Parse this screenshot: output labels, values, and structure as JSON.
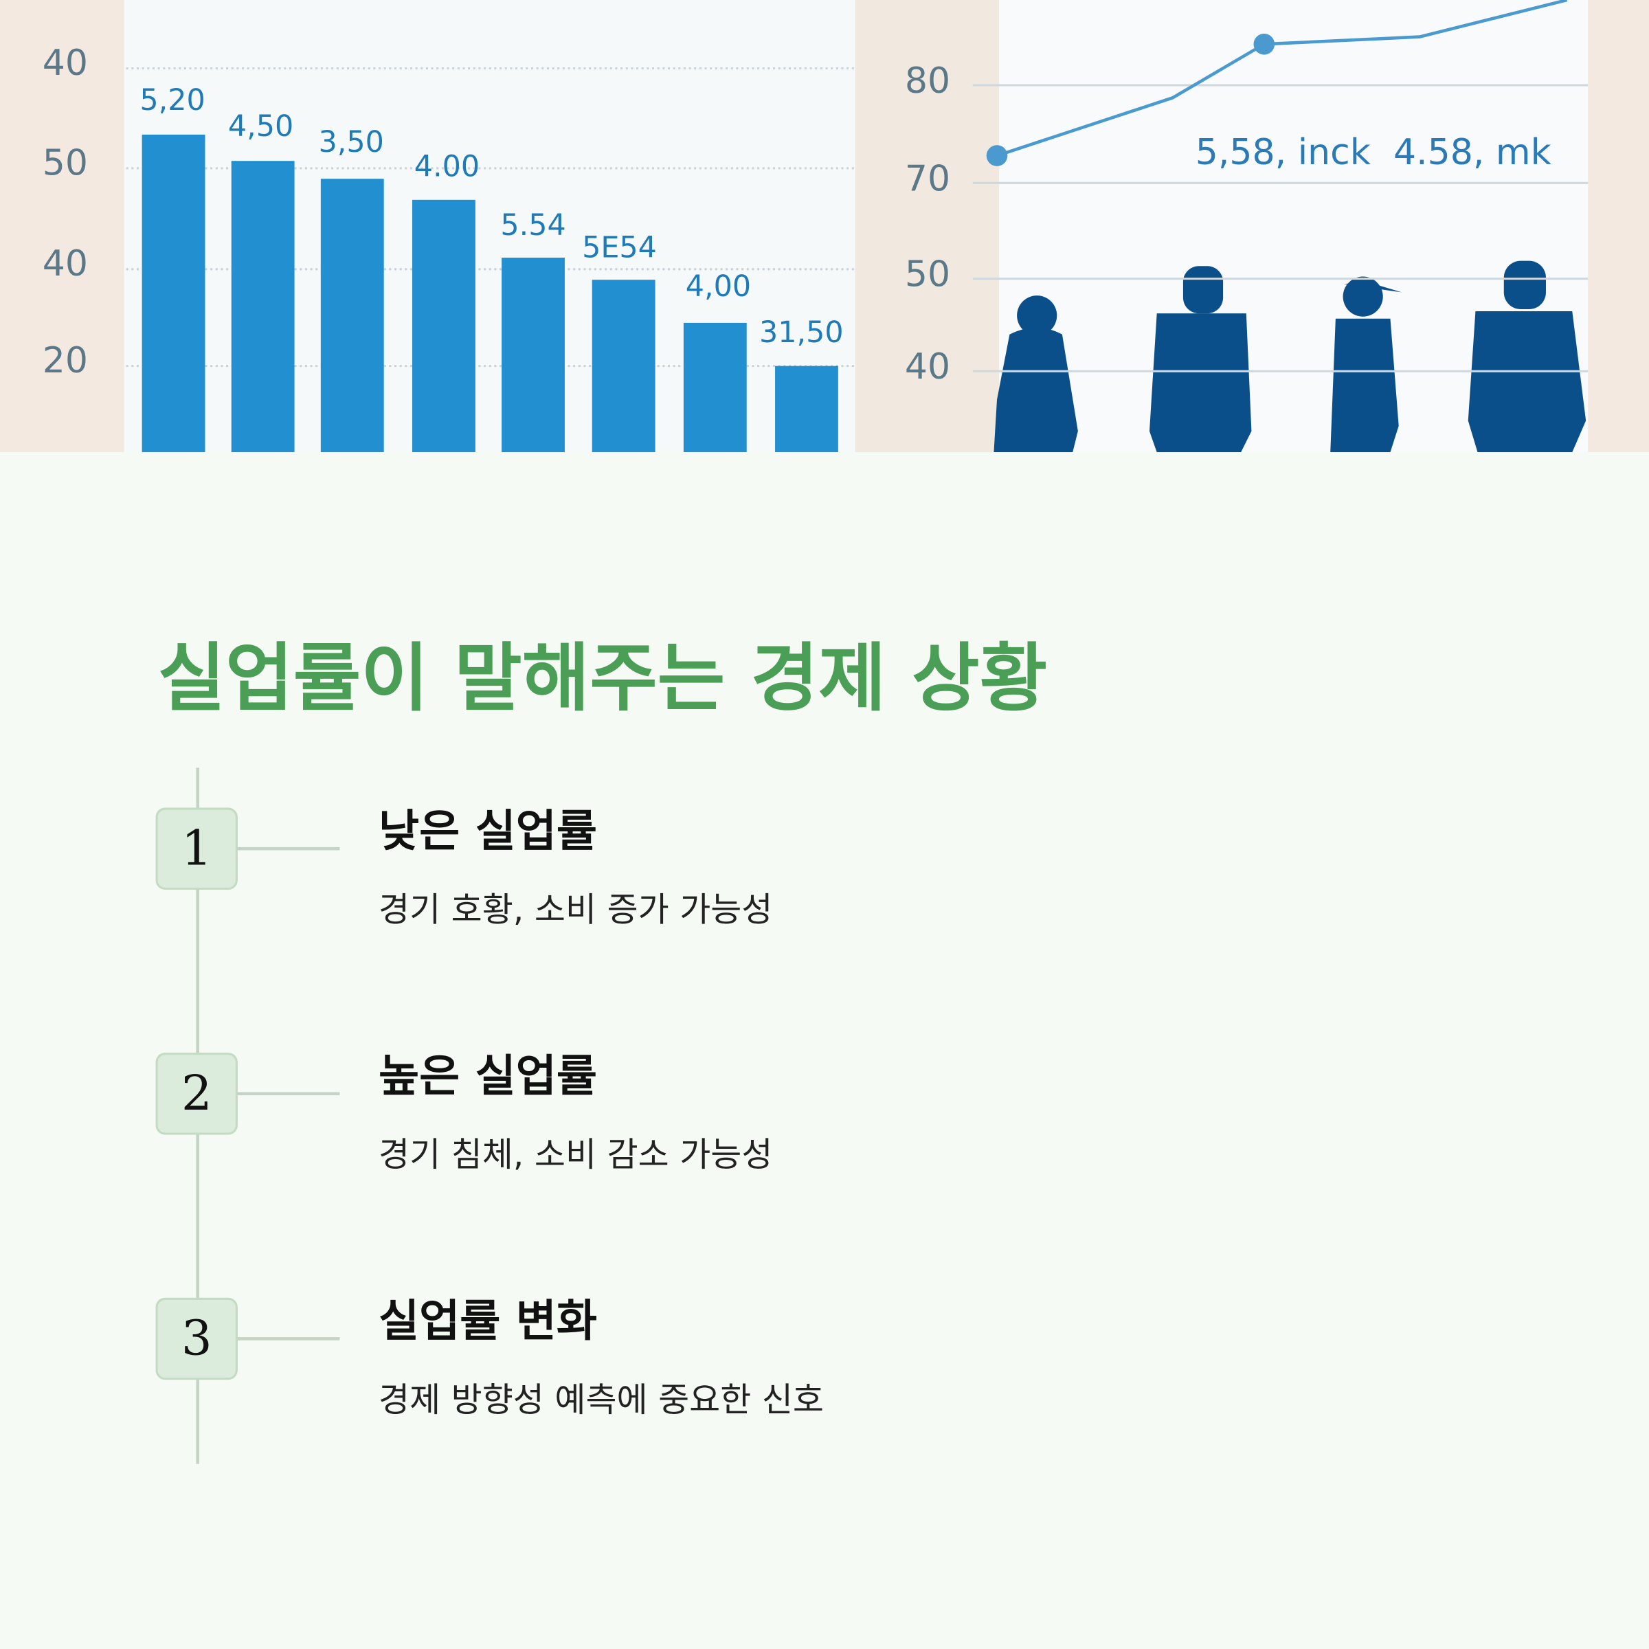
{
  "hero_image": {
    "left_axis_labels": [
      "40",
      "50",
      "40",
      "20"
    ],
    "bar_labels": [
      "5,20",
      "4,50",
      "3,50",
      "4.00",
      "5.54",
      "5E54",
      "4,00",
      "31,50"
    ],
    "right_axis_labels": [
      "80",
      "70",
      "50",
      "40"
    ],
    "line_labels": [
      "5,58, inck",
      "4.58, mk"
    ]
  },
  "title": "실업률이 말해주는 경제 상황",
  "steps": [
    {
      "number": "1",
      "heading": "낮은 실업률",
      "description": "경기 호황, 소비 증가 가능성"
    },
    {
      "number": "2",
      "heading": "높은 실업률",
      "description": "경기 침체, 소비 감소 가능성"
    },
    {
      "number": "3",
      "heading": "실업률 변화",
      "description": "경제 방향성 예측에 중요한 신호"
    }
  ]
}
